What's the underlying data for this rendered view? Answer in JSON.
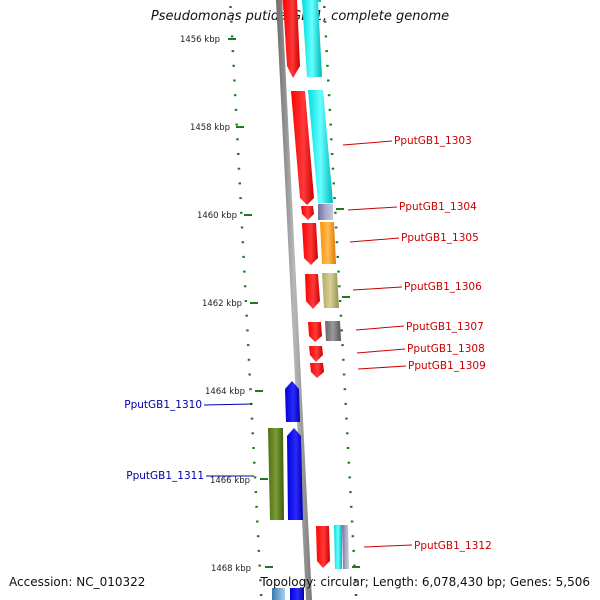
{
  "title": "Pseudomonas putida GB-1, complete genome",
  "accession": "Accession: NC_010322",
  "topology": "Topology: circular; Length: 6,078,430 bp; Genes: 5,506",
  "ruler": {
    "labels": [
      "1456 kbp",
      "1458 kbp",
      "1460 kbp",
      "1462 kbp",
      "1464 kbp",
      "1466 kbp",
      "1468 kbp"
    ]
  },
  "genes": [
    {
      "name": "PputGB1_1303",
      "strand": "right"
    },
    {
      "name": "PputGB1_1304",
      "strand": "right"
    },
    {
      "name": "PputGB1_1305",
      "strand": "right"
    },
    {
      "name": "PputGB1_1306",
      "strand": "right"
    },
    {
      "name": "PputGB1_1307",
      "strand": "right"
    },
    {
      "name": "PputGB1_1308",
      "strand": "right"
    },
    {
      "name": "PputGB1_1309",
      "strand": "right"
    },
    {
      "name": "PputGB1_1310",
      "strand": "left"
    },
    {
      "name": "PputGB1_1311",
      "strand": "left"
    },
    {
      "name": "PputGB1_1312",
      "strand": "right"
    }
  ],
  "colors": {
    "ruler": "#1f7a1f",
    "backbone": "#8c8c8c",
    "cds_forward": "#ff0000",
    "cds_reverse": "#0000e6",
    "label_forward": "#cc0000",
    "label_reverse": "#0000aa",
    "cyan": "#00e5e5",
    "orange": "#ff9900",
    "khaki": "#b8b070",
    "gray": "#707070",
    "slate": "#7a7aa0",
    "olive": "#5a7a1a"
  }
}
